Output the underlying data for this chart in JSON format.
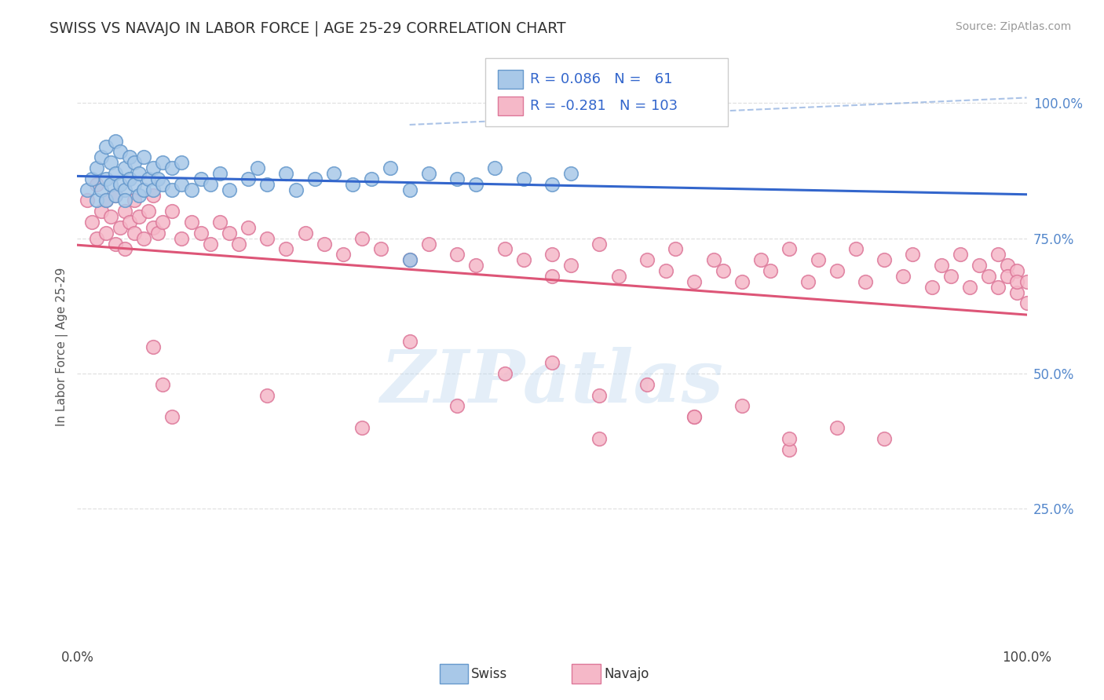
{
  "title": "SWISS VS NAVAJO IN LABOR FORCE | AGE 25-29 CORRELATION CHART",
  "source_text": "Source: ZipAtlas.com",
  "ylabel": "In Labor Force | Age 25-29",
  "xlim": [
    0.0,
    1.0
  ],
  "ylim": [
    0.0,
    1.1
  ],
  "ytick_values": [
    0.25,
    0.5,
    0.75,
    1.0
  ],
  "swiss_R": "0.086",
  "swiss_N": "61",
  "navajo_R": "-0.281",
  "navajo_N": "103",
  "swiss_fill": "#a8c8e8",
  "swiss_edge": "#6699cc",
  "navajo_fill": "#f5b8c8",
  "navajo_edge": "#dd7799",
  "trend_blue": "#3366cc",
  "trend_pink": "#dd5577",
  "dashed_blue": "#88aadd",
  "ytick_color": "#5588cc",
  "background": "#ffffff",
  "grid_color": "#dddddd",
  "watermark": "ZIPatlas",
  "swiss_x": [
    0.01,
    0.015,
    0.02,
    0.02,
    0.025,
    0.025,
    0.03,
    0.03,
    0.03,
    0.035,
    0.035,
    0.04,
    0.04,
    0.04,
    0.045,
    0.045,
    0.05,
    0.05,
    0.05,
    0.055,
    0.055,
    0.06,
    0.06,
    0.065,
    0.065,
    0.07,
    0.07,
    0.075,
    0.08,
    0.08,
    0.085,
    0.09,
    0.09,
    0.1,
    0.1,
    0.11,
    0.11,
    0.12,
    0.13,
    0.14,
    0.15,
    0.16,
    0.18,
    0.19,
    0.2,
    0.22,
    0.23,
    0.25,
    0.27,
    0.29,
    0.31,
    0.33,
    0.35,
    0.37,
    0.4,
    0.42,
    0.44,
    0.47,
    0.5,
    0.52,
    0.35
  ],
  "swiss_y": [
    0.84,
    0.86,
    0.82,
    0.88,
    0.84,
    0.9,
    0.86,
    0.82,
    0.92,
    0.85,
    0.89,
    0.83,
    0.87,
    0.93,
    0.85,
    0.91,
    0.84,
    0.88,
    0.82,
    0.86,
    0.9,
    0.85,
    0.89,
    0.83,
    0.87,
    0.84,
    0.9,
    0.86,
    0.88,
    0.84,
    0.86,
    0.85,
    0.89,
    0.84,
    0.88,
    0.85,
    0.89,
    0.84,
    0.86,
    0.85,
    0.87,
    0.84,
    0.86,
    0.88,
    0.85,
    0.87,
    0.84,
    0.86,
    0.87,
    0.85,
    0.86,
    0.88,
    0.84,
    0.87,
    0.86,
    0.85,
    0.88,
    0.86,
    0.85,
    0.87,
    0.71
  ],
  "navajo_x": [
    0.01,
    0.015,
    0.02,
    0.02,
    0.025,
    0.03,
    0.03,
    0.035,
    0.04,
    0.04,
    0.045,
    0.05,
    0.05,
    0.055,
    0.06,
    0.06,
    0.065,
    0.07,
    0.075,
    0.08,
    0.08,
    0.085,
    0.09,
    0.1,
    0.11,
    0.12,
    0.13,
    0.14,
    0.15,
    0.16,
    0.17,
    0.18,
    0.2,
    0.22,
    0.24,
    0.26,
    0.28,
    0.3,
    0.32,
    0.35,
    0.37,
    0.4,
    0.42,
    0.45,
    0.47,
    0.5,
    0.5,
    0.52,
    0.55,
    0.57,
    0.6,
    0.62,
    0.63,
    0.65,
    0.67,
    0.68,
    0.7,
    0.72,
    0.73,
    0.75,
    0.77,
    0.78,
    0.8,
    0.82,
    0.83,
    0.85,
    0.87,
    0.88,
    0.9,
    0.91,
    0.92,
    0.93,
    0.94,
    0.95,
    0.96,
    0.97,
    0.97,
    0.98,
    0.98,
    0.99,
    0.99,
    0.99,
    1.0,
    1.0,
    0.08,
    0.09,
    0.1,
    0.2,
    0.3,
    0.4,
    0.55,
    0.65,
    0.75,
    0.85,
    0.5,
    0.6,
    0.7,
    0.8,
    0.35,
    0.45,
    0.55,
    0.65,
    0.75
  ],
  "navajo_y": [
    0.82,
    0.78,
    0.75,
    0.85,
    0.8,
    0.76,
    0.82,
    0.79,
    0.74,
    0.83,
    0.77,
    0.8,
    0.73,
    0.78,
    0.82,
    0.76,
    0.79,
    0.75,
    0.8,
    0.77,
    0.83,
    0.76,
    0.78,
    0.8,
    0.75,
    0.78,
    0.76,
    0.74,
    0.78,
    0.76,
    0.74,
    0.77,
    0.75,
    0.73,
    0.76,
    0.74,
    0.72,
    0.75,
    0.73,
    0.71,
    0.74,
    0.72,
    0.7,
    0.73,
    0.71,
    0.68,
    0.72,
    0.7,
    0.74,
    0.68,
    0.71,
    0.69,
    0.73,
    0.67,
    0.71,
    0.69,
    0.67,
    0.71,
    0.69,
    0.73,
    0.67,
    0.71,
    0.69,
    0.73,
    0.67,
    0.71,
    0.68,
    0.72,
    0.66,
    0.7,
    0.68,
    0.72,
    0.66,
    0.7,
    0.68,
    0.72,
    0.66,
    0.7,
    0.68,
    0.65,
    0.69,
    0.67,
    0.63,
    0.67,
    0.55,
    0.48,
    0.42,
    0.46,
    0.4,
    0.44,
    0.38,
    0.42,
    0.36,
    0.38,
    0.52,
    0.48,
    0.44,
    0.4,
    0.56,
    0.5,
    0.46,
    0.42,
    0.38
  ]
}
